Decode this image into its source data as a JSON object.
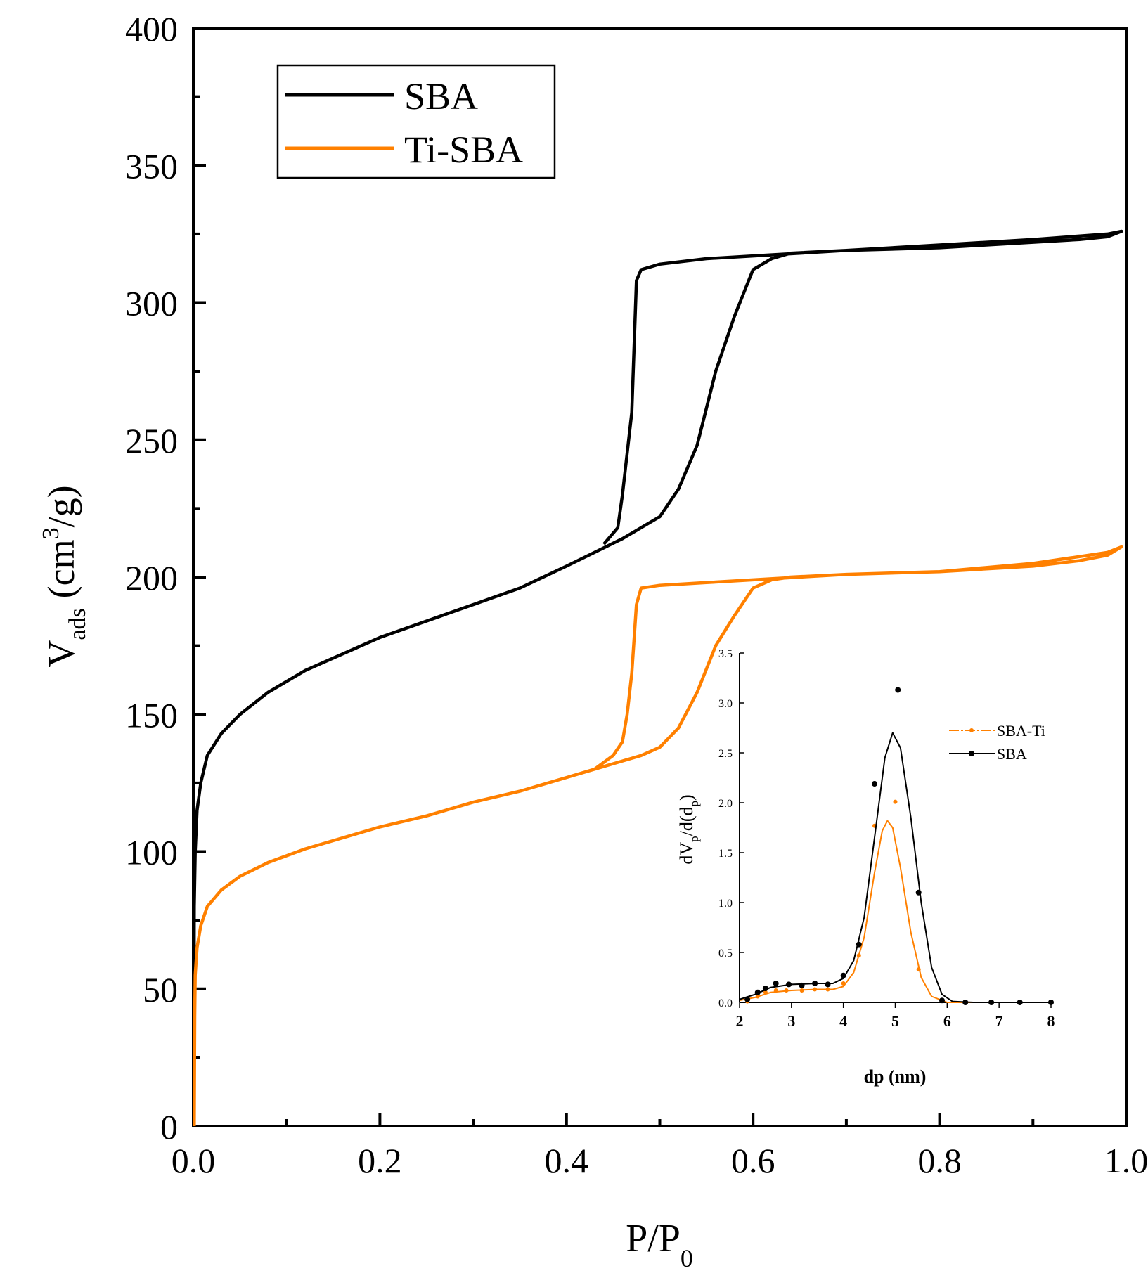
{
  "chart_data": [
    {
      "type": "line",
      "title": "",
      "xlabel": "P/P",
      "xlabel_sub": "0",
      "ylabel": "V",
      "ylabel_sub": "ads",
      "ylabel_unit_pre": "(cm",
      "ylabel_unit_sup": "3",
      "ylabel_unit_post": "/g)",
      "xlim": [
        0,
        1.0
      ],
      "ylim": [
        0,
        400
      ],
      "xticks": [
        "0.0",
        "0.2",
        "0.4",
        "0.6",
        "0.8",
        "1.0"
      ],
      "yticks": [
        "0",
        "50",
        "100",
        "150",
        "200",
        "250",
        "300",
        "350",
        "400"
      ],
      "grid": false,
      "legend_position": "top-left",
      "series": [
        {
          "name": "SBA",
          "color": "#000000",
          "points": [
            [
              0.0005,
              0
            ],
            [
              0.0008,
              60
            ],
            [
              0.001,
              80
            ],
            [
              0.002,
              100
            ],
            [
              0.004,
              115
            ],
            [
              0.008,
              125
            ],
            [
              0.015,
              135
            ],
            [
              0.03,
              143
            ],
            [
              0.05,
              150
            ],
            [
              0.08,
              158
            ],
            [
              0.12,
              166
            ],
            [
              0.16,
              172
            ],
            [
              0.2,
              178
            ],
            [
              0.25,
              184
            ],
            [
              0.3,
              190
            ],
            [
              0.35,
              196
            ],
            [
              0.4,
              204
            ],
            [
              0.43,
              209
            ],
            [
              0.46,
              214
            ],
            [
              0.48,
              218
            ],
            [
              0.5,
              222
            ],
            [
              0.52,
              232
            ],
            [
              0.54,
              248
            ],
            [
              0.56,
              275
            ],
            [
              0.58,
              295
            ],
            [
              0.6,
              312
            ],
            [
              0.62,
              316
            ],
            [
              0.64,
              318
            ],
            [
              0.7,
              319
            ],
            [
              0.8,
              320
            ],
            [
              0.9,
              322
            ],
            [
              0.95,
              323
            ],
            [
              0.98,
              324
            ],
            [
              0.995,
              326
            ],
            [
              0.98,
              325
            ],
            [
              0.9,
              323
            ],
            [
              0.8,
              321
            ],
            [
              0.7,
              319
            ],
            [
              0.6,
              317
            ],
            [
              0.55,
              316
            ],
            [
              0.5,
              314
            ],
            [
              0.48,
              312
            ],
            [
              0.475,
              308
            ],
            [
              0.47,
              260
            ],
            [
              0.46,
              230
            ],
            [
              0.455,
              218
            ],
            [
              0.44,
              212
            ]
          ]
        },
        {
          "name": "Ti-SBA",
          "color": "#ff8000",
          "points": [
            [
              0.001,
              0
            ],
            [
              0.0015,
              40
            ],
            [
              0.002,
              55
            ],
            [
              0.004,
              65
            ],
            [
              0.008,
              73
            ],
            [
              0.015,
              80
            ],
            [
              0.03,
              86
            ],
            [
              0.05,
              91
            ],
            [
              0.08,
              96
            ],
            [
              0.12,
              101
            ],
            [
              0.16,
              105
            ],
            [
              0.2,
              109
            ],
            [
              0.25,
              113
            ],
            [
              0.3,
              118
            ],
            [
              0.35,
              122
            ],
            [
              0.4,
              127
            ],
            [
              0.43,
              130
            ],
            [
              0.46,
              133
            ],
            [
              0.48,
              135
            ],
            [
              0.5,
              138
            ],
            [
              0.52,
              145
            ],
            [
              0.54,
              158
            ],
            [
              0.56,
              175
            ],
            [
              0.58,
              186
            ],
            [
              0.6,
              196
            ],
            [
              0.62,
              199
            ],
            [
              0.64,
              200
            ],
            [
              0.7,
              201
            ],
            [
              0.8,
              202
            ],
            [
              0.9,
              204
            ],
            [
              0.95,
              206
            ],
            [
              0.98,
              208
            ],
            [
              0.995,
              211
            ],
            [
              0.98,
              209
            ],
            [
              0.9,
              205
            ],
            [
              0.8,
              202
            ],
            [
              0.7,
              201
            ],
            [
              0.6,
              199
            ],
            [
              0.55,
              198
            ],
            [
              0.5,
              197
            ],
            [
              0.48,
              196
            ],
            [
              0.475,
              190
            ],
            [
              0.47,
              165
            ],
            [
              0.465,
              150
            ],
            [
              0.46,
              140
            ],
            [
              0.45,
              135
            ],
            [
              0.43,
              130
            ]
          ]
        }
      ]
    },
    {
      "type": "line",
      "title": "",
      "xlabel": "dp (nm)",
      "ylabel": "dV",
      "ylabel_sub1": "p",
      "ylabel_mid": "/d(d",
      "ylabel_sub2": "p",
      "ylabel_end": ")",
      "xlim": [
        2,
        8
      ],
      "ylim": [
        0,
        3.5
      ],
      "xticks": [
        "2",
        "3",
        "4",
        "5",
        "6",
        "7",
        "8"
      ],
      "yticks": [
        "0.0",
        "0.5",
        "1.0",
        "1.5",
        "2.0",
        "2.5",
        "3.0",
        "3.5"
      ],
      "grid": false,
      "legend_position": "top-right",
      "series": [
        {
          "name": "SBA-Ti",
          "color": "#ff8000",
          "points": [
            [
              2.15,
              0.01
            ],
            [
              2.35,
              0.06
            ],
            [
              2.5,
              0.1
            ],
            [
              2.7,
              0.12
            ],
            [
              2.9,
              0.12
            ],
            [
              3.2,
              0.12
            ],
            [
              3.45,
              0.13
            ],
            [
              3.7,
              0.13
            ],
            [
              4.0,
              0.19
            ],
            [
              4.3,
              0.47
            ],
            [
              4.6,
              1.77
            ],
            [
              5.0,
              2.01
            ],
            [
              5.45,
              0.33
            ],
            [
              5.9,
              0.02
            ],
            [
              6.35,
              0.0
            ],
            [
              6.85,
              0.0
            ],
            [
              7.4,
              0.0
            ],
            [
              8.0,
              0.0
            ]
          ],
          "fit": [
            [
              2.0,
              0.02
            ],
            [
              2.3,
              0.05
            ],
            [
              2.6,
              0.1
            ],
            [
              3.0,
              0.12
            ],
            [
              3.5,
              0.13
            ],
            [
              3.8,
              0.13
            ],
            [
              4.0,
              0.16
            ],
            [
              4.2,
              0.3
            ],
            [
              4.4,
              0.65
            ],
            [
              4.6,
              1.3
            ],
            [
              4.75,
              1.72
            ],
            [
              4.85,
              1.82
            ],
            [
              4.95,
              1.75
            ],
            [
              5.1,
              1.35
            ],
            [
              5.3,
              0.7
            ],
            [
              5.5,
              0.25
            ],
            [
              5.7,
              0.06
            ],
            [
              6.0,
              0.0
            ],
            [
              7.0,
              0.0
            ],
            [
              8.0,
              0.0
            ]
          ]
        },
        {
          "name": "SBA",
          "color": "#000000",
          "points": [
            [
              2.15,
              0.03
            ],
            [
              2.35,
              0.1
            ],
            [
              2.5,
              0.14
            ],
            [
              2.7,
              0.19
            ],
            [
              2.95,
              0.18
            ],
            [
              3.2,
              0.17
            ],
            [
              3.45,
              0.19
            ],
            [
              3.7,
              0.18
            ],
            [
              4.0,
              0.27
            ],
            [
              4.3,
              0.58
            ],
            [
              4.6,
              2.19
            ],
            [
              5.05,
              3.13
            ],
            [
              5.45,
              1.1
            ],
            [
              5.9,
              0.02
            ],
            [
              6.35,
              0.0
            ],
            [
              6.85,
              0.0
            ],
            [
              7.4,
              0.0
            ],
            [
              8.0,
              0.0
            ]
          ],
          "fit": [
            [
              2.0,
              0.03
            ],
            [
              2.3,
              0.08
            ],
            [
              2.6,
              0.15
            ],
            [
              3.0,
              0.18
            ],
            [
              3.5,
              0.19
            ],
            [
              3.8,
              0.19
            ],
            [
              4.0,
              0.24
            ],
            [
              4.2,
              0.42
            ],
            [
              4.4,
              0.85
            ],
            [
              4.6,
              1.65
            ],
            [
              4.8,
              2.45
            ],
            [
              4.95,
              2.7
            ],
            [
              5.1,
              2.55
            ],
            [
              5.3,
              1.85
            ],
            [
              5.5,
              1.0
            ],
            [
              5.7,
              0.35
            ],
            [
              5.9,
              0.08
            ],
            [
              6.1,
              0.01
            ],
            [
              6.5,
              0.0
            ],
            [
              8.0,
              0.0
            ]
          ]
        }
      ]
    }
  ]
}
